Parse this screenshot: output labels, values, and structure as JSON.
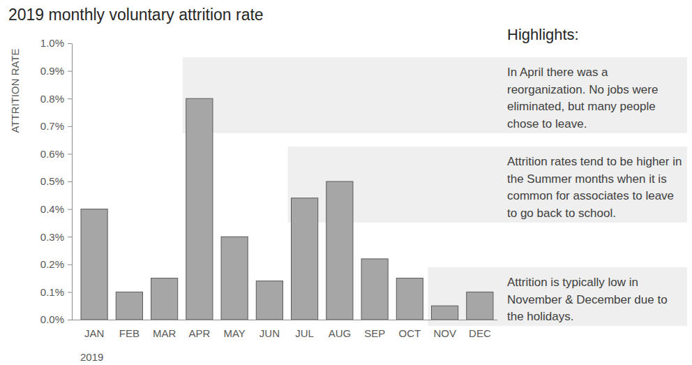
{
  "chart_data": {
    "type": "bar",
    "title": "2019 monthly voluntary attrition rate",
    "y_label": "ATTRITION RATE",
    "x_label": "2019",
    "categories": [
      "JAN",
      "FEB",
      "MAR",
      "APR",
      "MAY",
      "JUN",
      "JUL",
      "AUG",
      "SEP",
      "OCT",
      "NOV",
      "DEC"
    ],
    "values": [
      0.4,
      0.1,
      0.15,
      0.8,
      0.3,
      0.14,
      0.44,
      0.5,
      0.22,
      0.15,
      0.05,
      0.1
    ],
    "color": "#a6a6a6",
    "ylim": [
      0,
      1.0
    ],
    "yticks": [
      {
        "value": 0,
        "label": "0.0%"
      },
      {
        "value": 0.1,
        "label": "0.1%"
      },
      {
        "value": 0.2,
        "label": "0.2%"
      },
      {
        "value": 0.3,
        "label": "0.3%"
      },
      {
        "value": 0.4,
        "label": "0.4%"
      },
      {
        "value": 0.5,
        "label": "0.5%"
      },
      {
        "value": 0.6,
        "label": "0.6%"
      },
      {
        "value": 0.7,
        "label": "0.7%"
      },
      {
        "value": 0.8,
        "label": "0.8%"
      },
      {
        "value": 0.9,
        "label": "0.9%"
      },
      {
        "value": 1.0,
        "label": "1.0%"
      }
    ],
    "grid": false,
    "data_labels": false,
    "annotation_title": "Highlights:",
    "annotations": [
      {
        "text": "In April there was a reorganization. No jobs were eliminated, but many people chose to leave."
      },
      {
        "text": "Attrition rates tend to be higher in the Summer months when it is common for associates to leave to go back to school."
      },
      {
        "text": "Attrition is typically low in November & December due to the holidays."
      }
    ]
  }
}
